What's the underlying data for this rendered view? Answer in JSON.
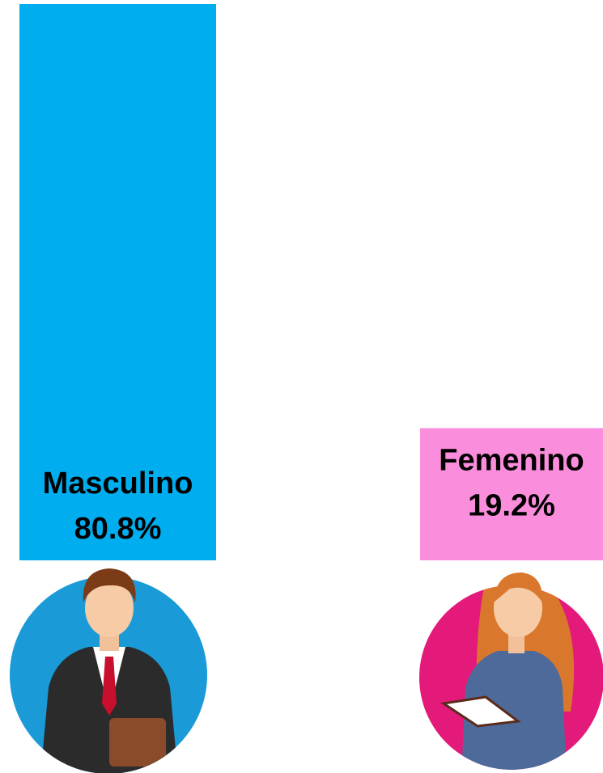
{
  "chart_data": {
    "type": "bar",
    "categories": [
      "Masculino",
      "Femenino"
    ],
    "values": [
      80.8,
      19.2
    ],
    "value_labels": [
      "80.8%",
      "19.2%"
    ],
    "colors": [
      "#00aeef",
      "#fa8ddc"
    ]
  }
}
